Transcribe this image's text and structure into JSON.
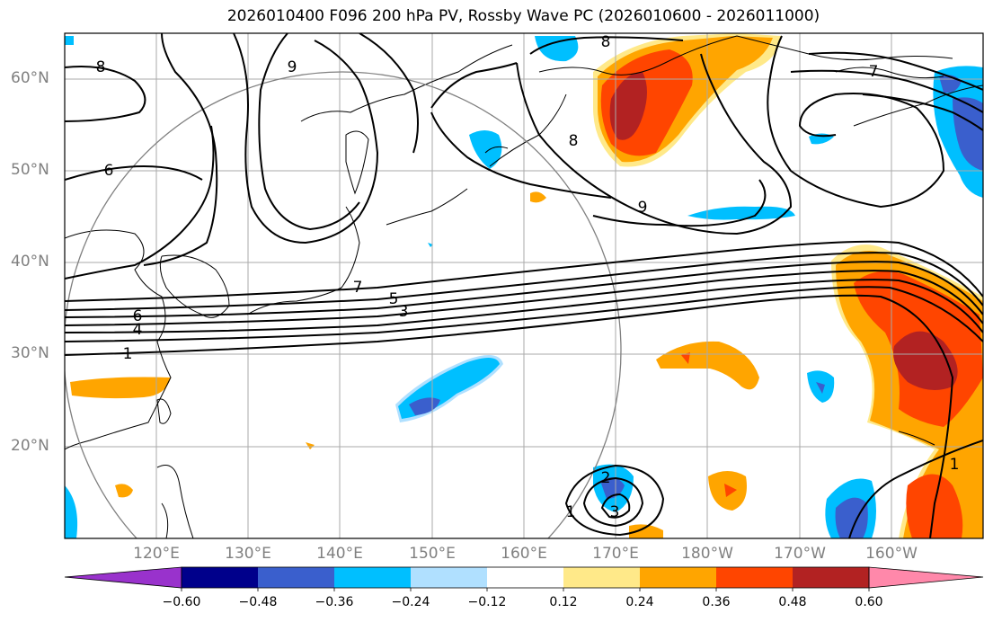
{
  "title": "2026010400 F096 200 hPa PV, Rossby Wave PC (2026010600 - 2026011000)",
  "lat_labels": [
    "60°N",
    "50°N",
    "40°N",
    "30°N",
    "20°N"
  ],
  "lon_labels": [
    "120°E",
    "130°E",
    "140°E",
    "150°E",
    "160°E",
    "170°E",
    "180°W",
    "170°W",
    "160°W"
  ],
  "colorbar": {
    "ticks": [
      "−0.60",
      "−0.48",
      "−0.36",
      "−0.24",
      "−0.12",
      "0.12",
      "0.24",
      "0.36",
      "0.48",
      "0.60"
    ],
    "colors": [
      "#9932cc",
      "#00008b",
      "#3a5fcd",
      "#00bfff",
      "#b0e0ff",
      "#ffffff",
      "#ffe989",
      "#ffa500",
      "#ff4500",
      "#b22222",
      "#ff88aa"
    ]
  },
  "contour_labels": [
    "8",
    "9",
    "6",
    "8",
    "7",
    "8",
    "9",
    "7",
    "6",
    "5",
    "3",
    "4",
    "1",
    "2",
    "3",
    "1",
    "1"
  ],
  "colors": {
    "grid": "#aaaaaa",
    "coast": "#000000",
    "contour": "#000000",
    "circle": "#808080"
  }
}
